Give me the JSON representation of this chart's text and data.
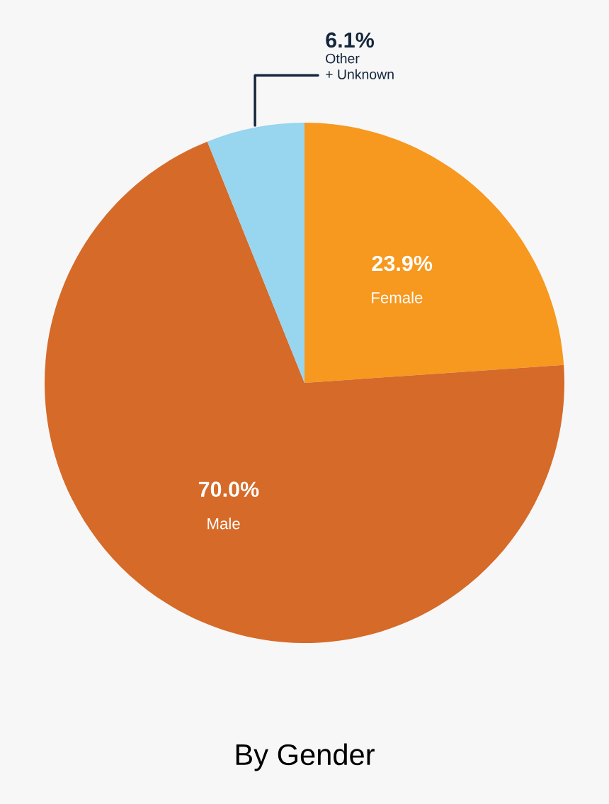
{
  "chart_data": {
    "type": "pie",
    "title": "By Gender",
    "categories": [
      "Female",
      "Male",
      "Other\n+ Unknown"
    ],
    "values": [
      23.9,
      70.0,
      6.1
    ],
    "colors": [
      "#f7981f",
      "#d66a28",
      "#98d5ee"
    ],
    "value_labels": [
      "23.9%",
      "70.0%",
      "6.1%"
    ],
    "legend": false
  }
}
